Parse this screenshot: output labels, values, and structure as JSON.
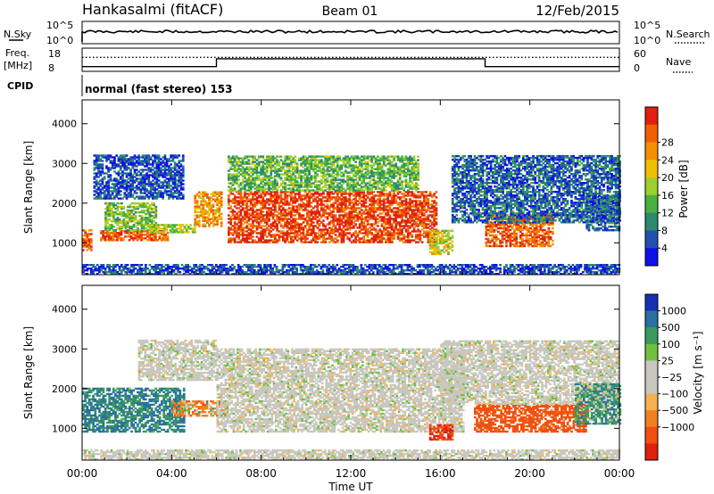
{
  "header": {
    "station": "Hankasalmi (fitACF)",
    "beam": "Beam 01",
    "date": "12/Feb/2015"
  },
  "nsky_panel": {
    "left_label": "N.Sky",
    "left_ticks": [
      "10^5",
      "10^0"
    ],
    "right_ticks": [
      "10^5",
      "10^0"
    ],
    "right_label": "N.Search",
    "level": 0.55
  },
  "freq_panel": {
    "left_label_1": "Freq.",
    "left_label_2": "[MHz]",
    "left_ticks": [
      "18",
      "8"
    ],
    "right_ticks": [
      "60",
      "0"
    ],
    "right_label": "Nave",
    "freq_steps": [
      {
        "from": 0.0,
        "to": 6.0,
        "level": 0.15
      },
      {
        "from": 6.0,
        "to": 18.0,
        "level": 0.55
      },
      {
        "from": 18.0,
        "to": 24.0,
        "level": 0.15
      }
    ],
    "nave_level": 0.62
  },
  "cpid": {
    "label": "CPID",
    "text": "normal (fast stereo) 153"
  },
  "time_axis": {
    "label": "Time UT",
    "ticks": [
      "00:00",
      "04:00",
      "08:00",
      "12:00",
      "16:00",
      "20:00",
      "00:00"
    ],
    "range_hours": [
      0,
      24
    ]
  },
  "chart_data": [
    {
      "type": "heatmap",
      "quantity": "power",
      "ylabel": "Slant Range [km]",
      "yticks": [
        "1000",
        "2000",
        "3000",
        "4000"
      ],
      "ylim": [
        200,
        4600
      ],
      "colorbar_label": "Power [dB]",
      "colorbar_ticks": [
        "4",
        "8",
        "12",
        "16",
        "20",
        "24",
        "28"
      ],
      "colorbar_colors": [
        "#1010e8",
        "#2050b0",
        "#2a8a70",
        "#4ab040",
        "#9ad030",
        "#f0c000",
        "#f59000",
        "#f06000",
        "#e02010"
      ],
      "features": [
        {
          "t0": 0.0,
          "t1": 0.4,
          "r0": 800,
          "r1": 1300,
          "level": 0.8
        },
        {
          "t0": 0.8,
          "t1": 3.8,
          "r0": 1050,
          "r1": 1300,
          "level": 0.85
        },
        {
          "t0": 1.0,
          "t1": 3.3,
          "r0": 1300,
          "r1": 2000,
          "level": 0.45
        },
        {
          "t0": 3.0,
          "t1": 5.0,
          "r0": 1250,
          "r1": 1450,
          "level": 0.5
        },
        {
          "t0": 5.0,
          "t1": 6.2,
          "r0": 1400,
          "r1": 2300,
          "level": 0.7
        },
        {
          "t0": 0.5,
          "t1": 4.5,
          "r0": 2100,
          "r1": 3200,
          "level": 0.15
        },
        {
          "t0": 6.5,
          "t1": 15.8,
          "r0": 1000,
          "r1": 2300,
          "level": 0.9
        },
        {
          "t0": 6.5,
          "t1": 15.0,
          "r0": 2300,
          "r1": 3200,
          "level": 0.4
        },
        {
          "t0": 15.5,
          "t1": 16.5,
          "r0": 700,
          "r1": 1300,
          "level": 0.55
        },
        {
          "t0": 18.0,
          "t1": 21.0,
          "r0": 900,
          "r1": 1700,
          "level": 0.85
        },
        {
          "t0": 16.5,
          "t1": 24.0,
          "r0": 1500,
          "r1": 3200,
          "level": 0.2
        },
        {
          "t0": 22.5,
          "t1": 24.0,
          "r0": 1300,
          "r1": 2200,
          "level": 0.2
        },
        {
          "t0": 0.0,
          "t1": 24.0,
          "r0": 200,
          "r1": 450,
          "level": 0.15
        }
      ]
    },
    {
      "type": "heatmap",
      "quantity": "velocity",
      "ylabel": "Slant Range [km]",
      "yticks": [
        "1000",
        "2000",
        "3000",
        "4000"
      ],
      "ylim": [
        200,
        4600
      ],
      "colorbar_label": "Velocity [m s⁻¹]",
      "colorbar_ticks": [
        "1000",
        "500",
        "100",
        "25",
        "−25",
        "−100",
        "−500",
        "−1000"
      ],
      "colorbar_colors": [
        "#1530b0",
        "#2a70a0",
        "#3a9a60",
        "#70c040",
        "#c8c8c0",
        "#c8c8c0",
        "#f5b050",
        "#f08020",
        "#f05010",
        "#e02010"
      ],
      "features": [
        {
          "t0": 0.0,
          "t1": 4.5,
          "r0": 900,
          "r1": 2000,
          "value": 300
        },
        {
          "t0": 4.0,
          "t1": 6.5,
          "r0": 1300,
          "r1": 1700,
          "value": -150
        },
        {
          "t0": 2.5,
          "t1": 6.0,
          "r0": 2200,
          "r1": 3200,
          "value": 0
        },
        {
          "t0": 6.0,
          "t1": 17.0,
          "r0": 900,
          "r1": 3000,
          "value": 0
        },
        {
          "t0": 15.5,
          "t1": 16.5,
          "r0": 700,
          "r1": 1100,
          "value": -700
        },
        {
          "t0": 17.5,
          "t1": 22.5,
          "r0": 900,
          "r1": 1600,
          "value": -500
        },
        {
          "t0": 16.0,
          "t1": 24.0,
          "r0": 1600,
          "r1": 3200,
          "value": 0
        },
        {
          "t0": 22.0,
          "t1": 24.0,
          "r0": 1100,
          "r1": 2100,
          "value": 200
        },
        {
          "t0": 0.0,
          "t1": 24.0,
          "r0": 200,
          "r1": 450,
          "value": 0
        }
      ]
    }
  ]
}
